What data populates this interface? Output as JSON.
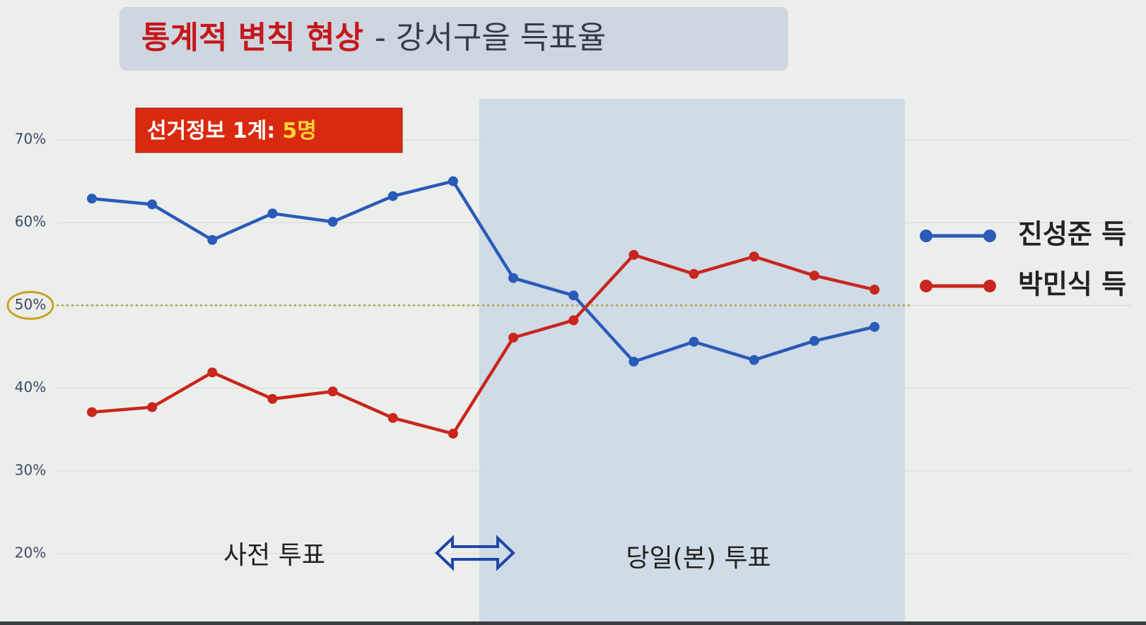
{
  "chart_data": {
    "type": "line",
    "title": "통계적 변칙 현상",
    "subtitle": "- 강서구을 득표율",
    "badge": {
      "label": "선거정보 1계:",
      "value": "5명"
    },
    "annotations": [
      "사전 투표",
      "당일(본) 투표"
    ],
    "categories": [
      null,
      null,
      null,
      null,
      null,
      null,
      null,
      null,
      null,
      null,
      null,
      null,
      null,
      null
    ],
    "series": [
      {
        "name": "진성준 득",
        "color": "#2a5bb8",
        "values": [
          62.9,
          62.2,
          57.9,
          61.1,
          60.1,
          63.2,
          65.0,
          53.3,
          51.2,
          43.2,
          45.6,
          43.4,
          45.7,
          47.4
        ]
      },
      {
        "name": "박민식 득",
        "color": "#c8261e",
        "values": [
          37.1,
          37.7,
          41.9,
          38.7,
          39.6,
          36.4,
          34.5,
          46.1,
          48.2,
          56.1,
          53.8,
          55.9,
          53.6,
          51.9
        ]
      }
    ],
    "ylim": [
      20,
      70
    ],
    "yticks": [
      {
        "value": 20,
        "label": "20%"
      },
      {
        "value": 30,
        "label": "30%"
      },
      {
        "value": 40,
        "label": "40%"
      },
      {
        "value": 50,
        "label": "50%"
      },
      {
        "value": 60,
        "label": "60%"
      },
      {
        "value": 70,
        "label": "70%"
      }
    ],
    "reference_line": 50,
    "grid": true,
    "legend": "right"
  }
}
